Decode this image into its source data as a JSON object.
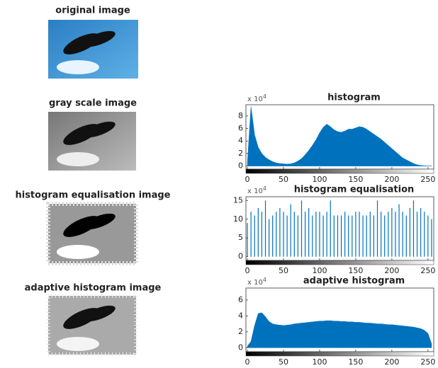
{
  "images": [
    {
      "title": "original image"
    },
    {
      "title": "gray scale image"
    },
    {
      "title": "histogram equalisation image"
    },
    {
      "title": "adaptive histogram image"
    }
  ],
  "chart_data": [
    {
      "type": "area",
      "title": "histogram",
      "y_multiplier": "x 10",
      "y_multiplier_exponent": "4",
      "color": "#0072bd",
      "x": [
        0,
        5,
        10,
        15,
        20,
        25,
        30,
        35,
        40,
        45,
        50,
        55,
        60,
        65,
        70,
        75,
        80,
        85,
        90,
        95,
        100,
        105,
        110,
        115,
        120,
        125,
        130,
        135,
        140,
        145,
        150,
        155,
        160,
        165,
        170,
        175,
        180,
        185,
        190,
        195,
        200,
        205,
        210,
        215,
        220,
        225,
        230,
        235,
        240,
        245,
        250,
        255
      ],
      "values": [
        0.5,
        9.5,
        5,
        3,
        2,
        1.4,
        1,
        0.7,
        0.5,
        0.4,
        0.35,
        0.3,
        0.35,
        0.5,
        0.8,
        1.2,
        1.8,
        2.5,
        3.3,
        4.2,
        5.3,
        6.2,
        6.7,
        6.3,
        5.8,
        5.5,
        5.4,
        5.6,
        5.9,
        5.9,
        6.1,
        6.3,
        6.2,
        5.9,
        5.5,
        5.1,
        4.7,
        4.3,
        3.8,
        3.3,
        2.8,
        2.3,
        1.8,
        1.3,
        1.0,
        0.7,
        0.4,
        0.2,
        0.1,
        0.05,
        0,
        0
      ],
      "xlim": [
        -2,
        258
      ],
      "xticks": [
        0,
        50,
        100,
        150,
        200,
        250
      ],
      "ylim": [
        -0.5,
        9.8
      ],
      "yticks": [
        0,
        2,
        4,
        6,
        8
      ]
    },
    {
      "type": "spikes",
      "title": "histogram equalisation",
      "y_multiplier": "x 10",
      "y_multiplier_exponent": "4",
      "color": "#0072bd",
      "x": [
        0,
        5,
        10,
        15,
        20,
        25,
        30,
        35,
        40,
        45,
        50,
        55,
        60,
        65,
        70,
        75,
        80,
        85,
        90,
        95,
        100,
        105,
        110,
        115,
        120,
        125,
        130,
        135,
        140,
        145,
        150,
        155,
        160,
        165,
        170,
        175,
        180,
        185,
        190,
        195,
        200,
        205,
        210,
        215,
        220,
        225,
        230,
        235,
        240,
        245,
        250,
        255
      ],
      "values": [
        9,
        12,
        11,
        13,
        12,
        15,
        10,
        11,
        12,
        13,
        12,
        11,
        14,
        12,
        11,
        15,
        12,
        13,
        11,
        12,
        12,
        11,
        12,
        15,
        11,
        11,
        11,
        12,
        11,
        11,
        12,
        12,
        11,
        11,
        12,
        11,
        15,
        12,
        11,
        12,
        13,
        12,
        14,
        12,
        11,
        13,
        15,
        12,
        13,
        12,
        11,
        10
      ],
      "xlim": [
        -2,
        258
      ],
      "xticks": [
        0,
        50,
        100,
        150,
        200,
        250
      ],
      "ylim": [
        -1,
        16
      ],
      "yticks": [
        0,
        5,
        10,
        15
      ]
    },
    {
      "type": "area",
      "title": "adaptive histogram",
      "y_multiplier": "x 10",
      "y_multiplier_exponent": "4",
      "color": "#0072bd",
      "x": [
        0,
        5,
        10,
        15,
        20,
        25,
        30,
        35,
        40,
        45,
        50,
        55,
        60,
        65,
        70,
        75,
        80,
        85,
        90,
        95,
        100,
        105,
        110,
        115,
        120,
        125,
        130,
        135,
        140,
        145,
        150,
        155,
        160,
        165,
        170,
        175,
        180,
        185,
        190,
        195,
        200,
        205,
        210,
        215,
        220,
        225,
        230,
        235,
        240,
        245,
        250,
        255
      ],
      "values": [
        0.2,
        0.8,
        2.8,
        4.3,
        4.4,
        3.9,
        3.3,
        3.0,
        2.9,
        2.85,
        2.8,
        2.85,
        2.9,
        3.0,
        3.05,
        3.1,
        3.15,
        3.2,
        3.25,
        3.3,
        3.35,
        3.35,
        3.4,
        3.4,
        3.35,
        3.35,
        3.3,
        3.3,
        3.25,
        3.25,
        3.2,
        3.2,
        3.15,
        3.1,
        3.1,
        3.05,
        3.0,
        3.0,
        2.95,
        2.9,
        2.9,
        2.85,
        2.8,
        2.75,
        2.7,
        2.65,
        2.6,
        2.5,
        2.4,
        2.2,
        1.8,
        0.5
      ],
      "xlim": [
        -2,
        258
      ],
      "xticks": [
        0,
        50,
        100,
        150,
        200,
        250
      ],
      "ylim": [
        -0.5,
        7.5
      ],
      "yticks": [
        0,
        2,
        4,
        6
      ]
    }
  ]
}
